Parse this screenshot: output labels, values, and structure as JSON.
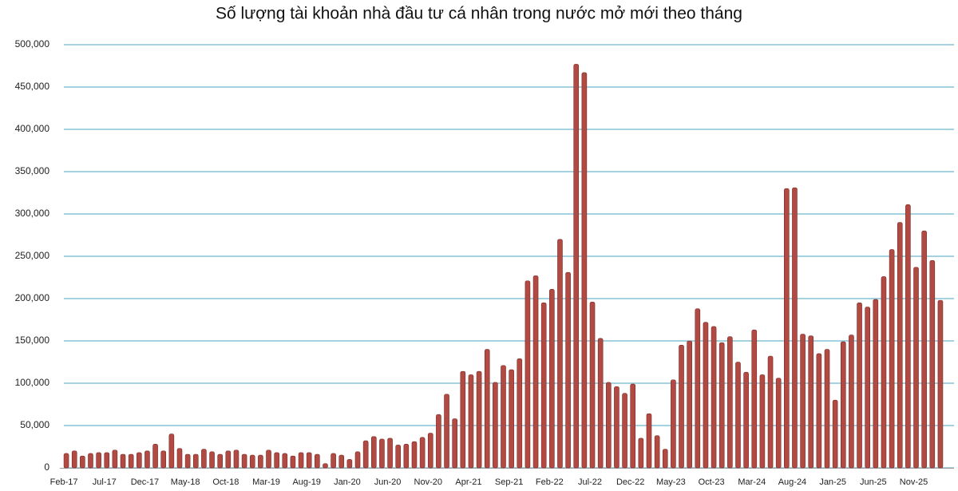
{
  "chart_data": {
    "type": "bar",
    "title": "Số lượng tài khoản nhà đầu tư cá nhân trong nước mở mới theo tháng",
    "categories": [
      "Feb-17",
      null,
      null,
      null,
      null,
      "Jul-17",
      null,
      null,
      null,
      null,
      "Dec-17",
      null,
      null,
      null,
      null,
      "May-18",
      null,
      null,
      null,
      null,
      "Oct-18",
      null,
      null,
      null,
      null,
      "Mar-19",
      null,
      null,
      null,
      null,
      "Aug-19",
      null,
      null,
      null,
      null,
      "Jan-20",
      null,
      null,
      null,
      null,
      "Jun-20",
      null,
      null,
      null,
      null,
      "Nov-20",
      null,
      null,
      null,
      null,
      "Apr-21",
      null,
      null,
      null,
      null,
      "Sep-21",
      null,
      null,
      null,
      null,
      "Feb-22",
      null,
      null,
      null,
      null,
      "Jul-22",
      null,
      null,
      null,
      null,
      "Dec-22",
      null,
      null,
      null,
      null,
      "May-23",
      null,
      null,
      null,
      null,
      "Oct-23",
      null,
      null,
      null,
      null,
      "Mar-24",
      null,
      null,
      null,
      null,
      "Aug-24",
      null,
      null,
      null,
      null,
      "Jan-25",
      null,
      null,
      null,
      null,
      "Jun-25",
      null,
      null,
      null,
      null,
      "Nov-25",
      null,
      null,
      null
    ],
    "values": [
      17000,
      20000,
      14000,
      17000,
      18000,
      18000,
      21000,
      16000,
      16000,
      18000,
      20000,
      28000,
      20000,
      40000,
      23000,
      16000,
      16000,
      22000,
      19000,
      16000,
      20000,
      21000,
      16000,
      15000,
      15000,
      21000,
      18000,
      17000,
      14000,
      18000,
      18000,
      16000,
      5000,
      17000,
      15000,
      10000,
      19000,
      32000,
      37000,
      34000,
      35000,
      27000,
      28000,
      31000,
      36000,
      41000,
      63000,
      87000,
      58000,
      114000,
      110000,
      114000,
      140000,
      101000,
      121000,
      116000,
      129000,
      221000,
      227000,
      195000,
      211000,
      270000,
      231000,
      477000,
      467000,
      196000,
      153000,
      101000,
      96000,
      88000,
      99000,
      35000,
      64000,
      38000,
      22000,
      104000,
      145000,
      150000,
      188000,
      172000,
      167000,
      148000,
      155000,
      125000,
      113000,
      163000,
      110000,
      132000,
      106000,
      330000,
      331000,
      158000,
      156000,
      135000,
      140000,
      80000,
      149000,
      157000,
      195000,
      190000,
      199000,
      226000,
      258000,
      290000,
      311000,
      237000,
      280000,
      245000,
      198000
    ],
    "color": "#b04a43",
    "ylim": [
      0,
      500000
    ],
    "yticks": [
      0,
      {
        "value": 50000,
        "label": "50,000"
      },
      {
        "value": 100000,
        "label": "100,000"
      },
      {
        "value": 150000,
        "label": "150,000"
      },
      {
        "value": 200000,
        "label": "200,000"
      },
      {
        "value": 250000,
        "label": "250,000"
      },
      {
        "value": 300000,
        "label": "300,000"
      },
      {
        "value": 350000,
        "label": "350,000"
      },
      {
        "value": 400000,
        "label": "400,000"
      },
      {
        "value": 450000,
        "label": "450,000"
      },
      {
        "value": 500000,
        "label": "500,000"
      }
    ],
    "grid": true,
    "grid_color": "#4aa6c2"
  }
}
